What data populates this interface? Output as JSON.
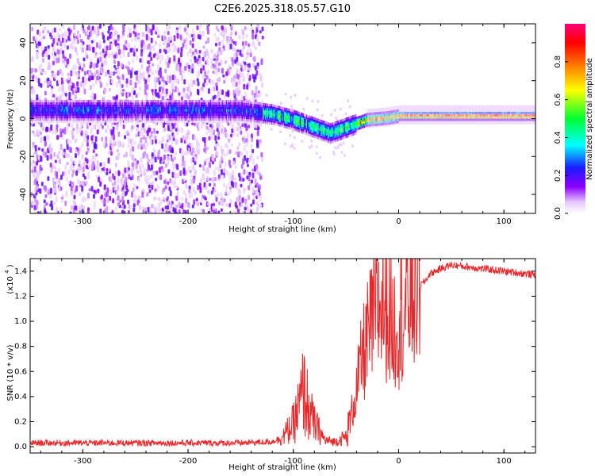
{
  "title": "C2E6.2025.318.05.57.G10",
  "colors": {
    "snr_line": "#e8282a",
    "background": "#ffffff",
    "axis": "#000000"
  },
  "chart_data": [
    {
      "type": "heatmap",
      "title": "",
      "xlabel": "Height of straight line (km)",
      "ylabel": "Frequency (Hz)",
      "xlim": [
        -350,
        130
      ],
      "ylim": [
        -50,
        50
      ],
      "xticks": [
        "-300",
        "-200",
        "-100",
        "0",
        "100"
      ],
      "yticks": [
        "40",
        "20",
        "0",
        "-20",
        "-40"
      ],
      "colorbar": {
        "label": "Normalized spectral amplitude",
        "range": [
          0,
          1
        ],
        "ticks": [
          "0.0",
          "0.2",
          "0.4",
          "0.6",
          "0.8"
        ]
      },
      "features": {
        "noise_region_x": [
          -350,
          -130
        ],
        "band_center_freq": [
          [
            -350,
            5
          ],
          [
            -250,
            5
          ],
          [
            -150,
            5
          ],
          [
            -120,
            3
          ],
          [
            -100,
            0
          ],
          [
            -80,
            -4
          ],
          [
            -65,
            -7
          ],
          [
            -50,
            -4
          ],
          [
            -30,
            0
          ],
          [
            -10,
            1
          ],
          [
            0,
            2
          ],
          [
            50,
            2
          ],
          [
            130,
            2
          ]
        ],
        "peak_amplitude_region_x": [
          0,
          130
        ]
      }
    },
    {
      "type": "line",
      "title": "",
      "xlabel": "Height of straight line (km)",
      "ylabel": "SNR (10 * v/v)",
      "yscale_label": "(x10",
      "yscale_exp": "4",
      "xlim": [
        -350,
        130
      ],
      "ylim": [
        -0.05,
        1.5
      ],
      "xticks": [
        "-300",
        "-200",
        "-100",
        "0",
        "100"
      ],
      "yticks": [
        "0.0",
        "0.2",
        "0.4",
        "0.6",
        "0.8",
        "1.0",
        "1.2",
        "1.4"
      ],
      "series": [
        {
          "name": "SNR",
          "x": [
            -350,
            -300,
            -250,
            -200,
            -150,
            -120,
            -110,
            -100,
            -95,
            -90,
            -85,
            -80,
            -75,
            -70,
            -60,
            -50,
            -45,
            -40,
            -35,
            -30,
            -25,
            -20,
            -15,
            -10,
            -5,
            0,
            5,
            10,
            15,
            20,
            25,
            30,
            40,
            50,
            60,
            70,
            80,
            90,
            100,
            110,
            120,
            130
          ],
          "values": [
            0.03,
            0.03,
            0.03,
            0.03,
            0.03,
            0.04,
            0.08,
            0.18,
            0.3,
            0.45,
            0.28,
            0.18,
            0.12,
            0.05,
            0.04,
            0.08,
            0.25,
            0.45,
            0.7,
            0.85,
            1.0,
            1.1,
            1.15,
            1.1,
            0.95,
            1.0,
            1.1,
            1.2,
            1.25,
            1.28,
            1.32,
            1.38,
            1.42,
            1.45,
            1.44,
            1.43,
            1.42,
            1.41,
            1.4,
            1.39,
            1.38,
            1.37
          ]
        }
      ]
    }
  ]
}
